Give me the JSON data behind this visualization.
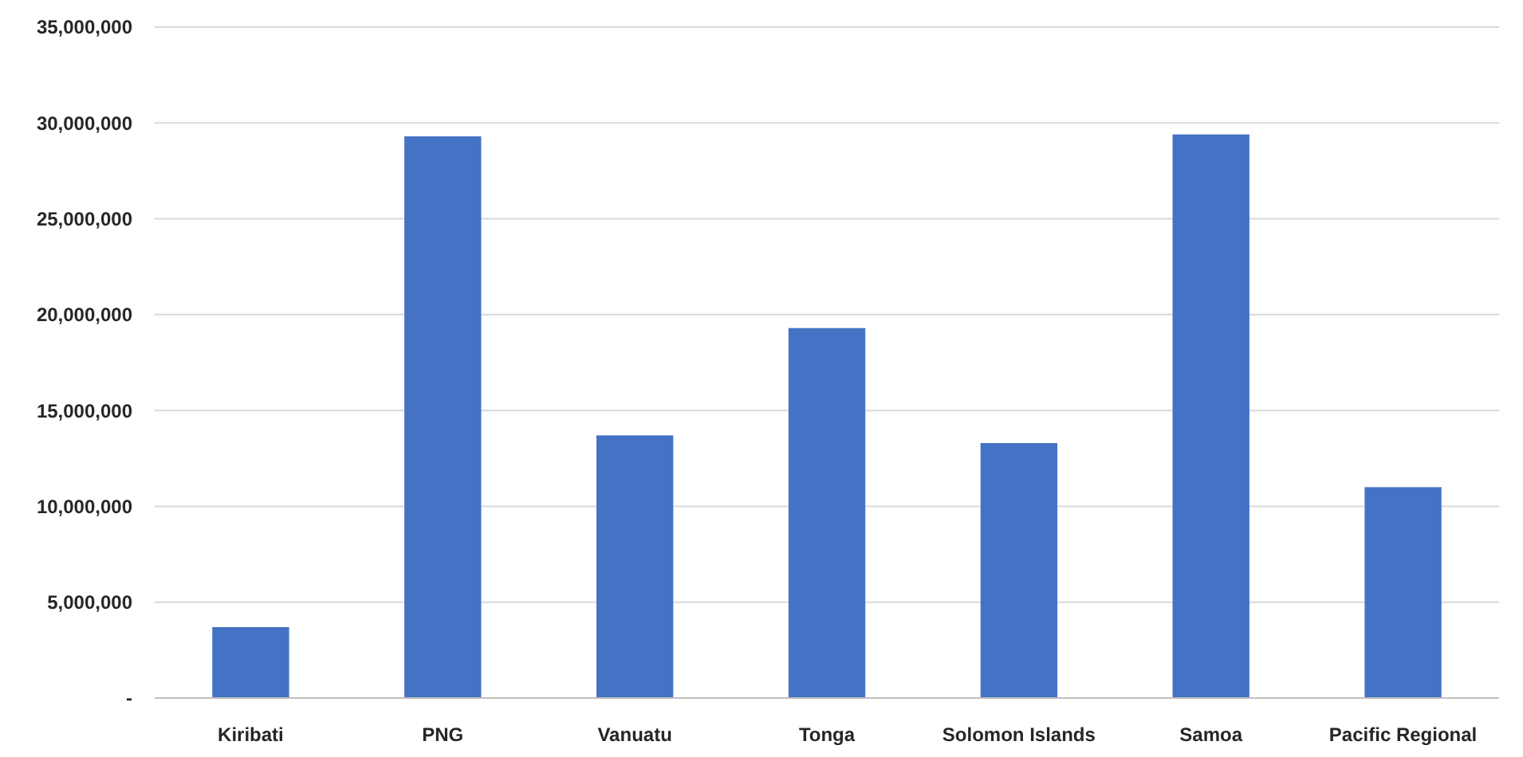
{
  "chart_data": {
    "type": "bar",
    "categories": [
      "Kiribati",
      "PNG",
      "Vanuatu",
      "Tonga",
      "Solomon Islands",
      "Samoa",
      "Pacific Regional"
    ],
    "values": [
      3700000,
      29300000,
      13700000,
      19300000,
      13300000,
      29400000,
      11000000
    ],
    "color": "#4472c4",
    "ylim": [
      0,
      35000000
    ],
    "yticks": [
      {
        "value": 0,
        "label": "-"
      },
      {
        "value": 5000000,
        "label": "5,000,000"
      },
      {
        "value": 10000000,
        "label": "10,000,000"
      },
      {
        "value": 15000000,
        "label": "15,000,000"
      },
      {
        "value": 20000000,
        "label": "20,000,000"
      },
      {
        "value": 25000000,
        "label": "25,000,000"
      },
      {
        "value": 30000000,
        "label": "30,000,000"
      },
      {
        "value": 35000000,
        "label": "35,000,000"
      }
    ],
    "grid": "y"
  }
}
